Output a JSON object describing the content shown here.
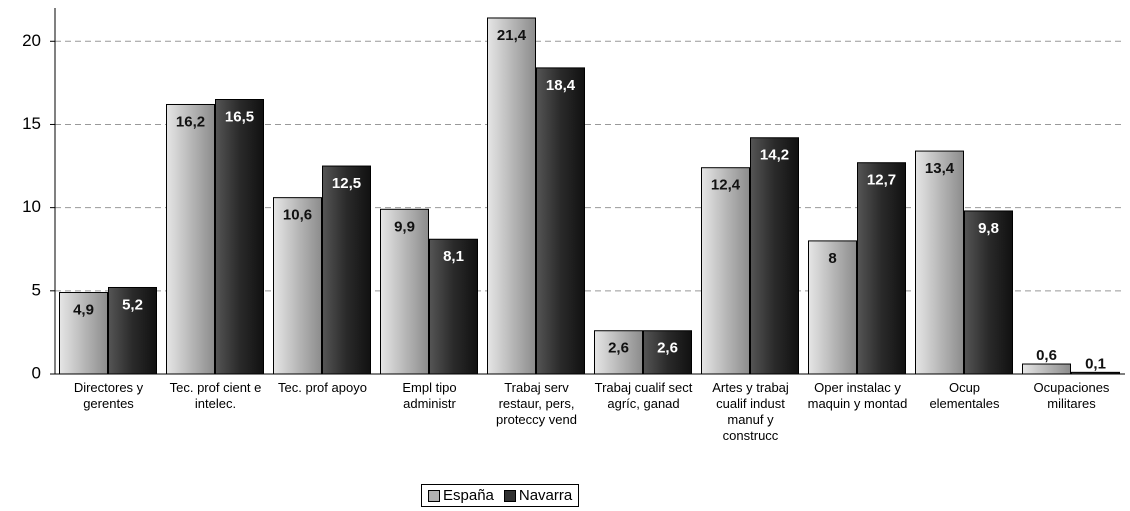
{
  "chart_data": {
    "type": "bar",
    "categories": [
      "Directores y gerentes",
      "Tec. prof cient e intelec.",
      "Tec. prof apoyo",
      "Empl tipo administr",
      "Trabaj serv restaur, pers, proteccy vend",
      "Trabaj cualif sect agríc, ganad",
      "Artes y trabaj cualif indust manuf y construcc",
      "Oper instalac y maquin y montad",
      "Ocup elementales",
      "Ocupaciones militares"
    ],
    "series": [
      {
        "name": "España",
        "color": "#b0b0b0",
        "values": [
          4.9,
          16.2,
          10.6,
          9.9,
          21.4,
          2.6,
          12.4,
          8,
          13.4,
          0.6
        ],
        "value_labels": [
          "4,9",
          "16,2",
          "10,6",
          "9,9",
          "21,4",
          "2,6",
          "12,4",
          "8",
          "13,4",
          "0,6"
        ]
      },
      {
        "name": "Navarra",
        "color": "#303030",
        "values": [
          5.2,
          16.5,
          12.5,
          8.1,
          18.4,
          2.6,
          14.2,
          12.7,
          9.8,
          0.1
        ],
        "value_labels": [
          "5,2",
          "16,5",
          "12,5",
          "8,1",
          "18,4",
          "2,6",
          "14,2",
          "12,7",
          "9,8",
          "0,1"
        ]
      }
    ],
    "ylim": [
      0,
      22
    ],
    "yticks": [
      0,
      5,
      10,
      15,
      20
    ],
    "grid": true
  }
}
